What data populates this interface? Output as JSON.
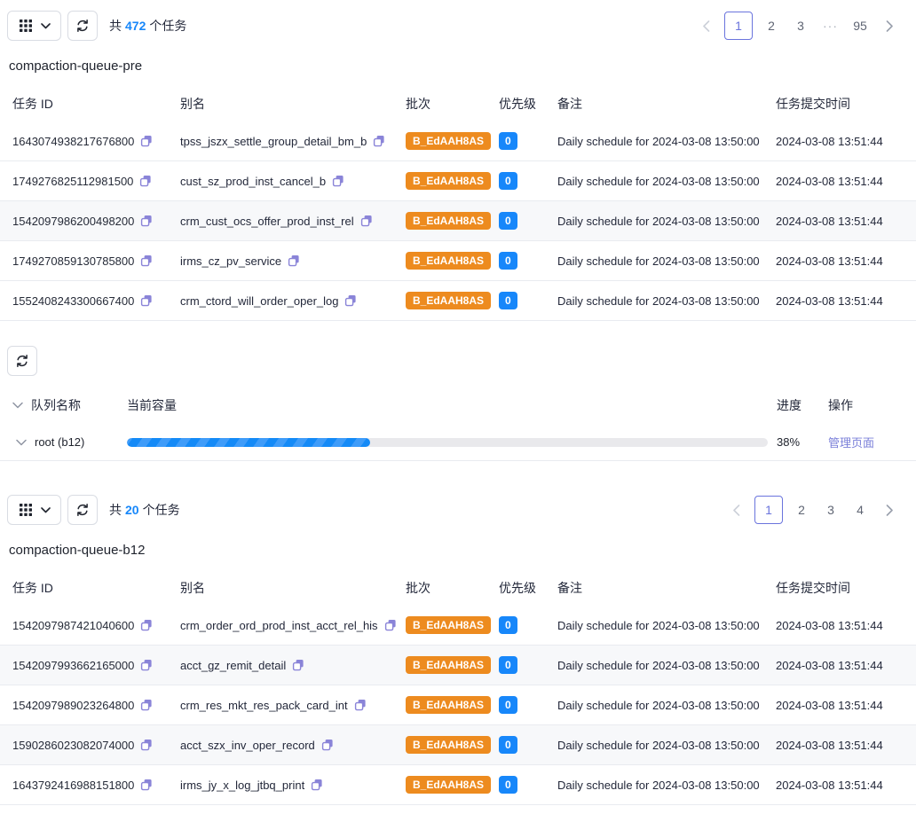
{
  "top": {
    "count": {
      "prefix": "共",
      "value": "472",
      "suffix": "个任务"
    },
    "pagination": {
      "pages": [
        "1",
        "2",
        "3",
        "···",
        "95"
      ],
      "active": "1"
    },
    "title": "compaction-queue-pre",
    "headers": {
      "id": "任务 ID",
      "alias": "别名",
      "batch": "批次",
      "priority": "优先级",
      "remark": "备注",
      "submit_time": "任务提交时间"
    },
    "rows": [
      {
        "id": "1643074938217676800",
        "alias": "tpss_jszx_settle_group_detail_bm_b",
        "batch": "B_EdAAH8AS",
        "priority": "0",
        "remark": "Daily schedule for 2024-03-08 13:50:00",
        "time": "2024-03-08 13:51:44"
      },
      {
        "id": "1749276825112981500",
        "alias": "cust_sz_prod_inst_cancel_b",
        "batch": "B_EdAAH8AS",
        "priority": "0",
        "remark": "Daily schedule for 2024-03-08 13:50:00",
        "time": "2024-03-08 13:51:44"
      },
      {
        "id": "1542097986200498200",
        "alias": "crm_cust_ocs_offer_prod_inst_rel",
        "batch": "B_EdAAH8AS",
        "priority": "0",
        "remark": "Daily schedule for 2024-03-08 13:50:00",
        "time": "2024-03-08 13:51:44"
      },
      {
        "id": "1749270859130785800",
        "alias": "irms_cz_pv_service",
        "batch": "B_EdAAH8AS",
        "priority": "0",
        "remark": "Daily schedule for 2024-03-08 13:50:00",
        "time": "2024-03-08 13:51:44"
      },
      {
        "id": "1552408243300667400",
        "alias": "crm_ctord_will_order_oper_log",
        "batch": "B_EdAAH8AS",
        "priority": "0",
        "remark": "Daily schedule for 2024-03-08 13:50:00",
        "time": "2024-03-08 13:51:44"
      }
    ]
  },
  "queue": {
    "headers": {
      "name": "队列名称",
      "capacity": "当前容量",
      "progress": "进度",
      "action": "操作"
    },
    "row": {
      "name": "root (b12)",
      "progress_pct": 38,
      "progress_label": "38%",
      "action": "管理页面"
    }
  },
  "bottom": {
    "count": {
      "prefix": "共",
      "value": "20",
      "suffix": "个任务"
    },
    "pagination": {
      "pages": [
        "1",
        "2",
        "3",
        "4"
      ],
      "active": "1"
    },
    "title": "compaction-queue-b12",
    "headers": {
      "id": "任务 ID",
      "alias": "别名",
      "batch": "批次",
      "priority": "优先级",
      "remark": "备注",
      "submit_time": "任务提交时间"
    },
    "rows": [
      {
        "id": "1542097987421040600",
        "alias": "crm_order_ord_prod_inst_acct_rel_his",
        "batch": "B_EdAAH8AS",
        "priority": "0",
        "remark": "Daily schedule for 2024-03-08 13:50:00",
        "time": "2024-03-08 13:51:44"
      },
      {
        "id": "1542097993662165000",
        "alias": "acct_gz_remit_detail",
        "batch": "B_EdAAH8AS",
        "priority": "0",
        "remark": "Daily schedule for 2024-03-08 13:50:00",
        "time": "2024-03-08 13:51:44"
      },
      {
        "id": "1542097989023264800",
        "alias": "crm_res_mkt_res_pack_card_int",
        "batch": "B_EdAAH8AS",
        "priority": "0",
        "remark": "Daily schedule for 2024-03-08 13:50:00",
        "time": "2024-03-08 13:51:44"
      },
      {
        "id": "1590286023082074000",
        "alias": "acct_szx_inv_oper_record",
        "batch": "B_EdAAH8AS",
        "priority": "0",
        "remark": "Daily schedule for 2024-03-08 13:50:00",
        "time": "2024-03-08 13:51:44"
      },
      {
        "id": "1643792416988151800",
        "alias": "irms_jy_x_log_jtbq_print",
        "batch": "B_EdAAH8AS",
        "priority": "0",
        "remark": "Daily schedule for 2024-03-08 13:50:00",
        "time": "2024-03-08 13:51:44"
      }
    ]
  },
  "colors": {
    "accent_blue": "#1787fa",
    "badge_orange": "#ed8b1f",
    "link_purple": "#7a7fd9",
    "pagination_active": "#6a74dd"
  }
}
